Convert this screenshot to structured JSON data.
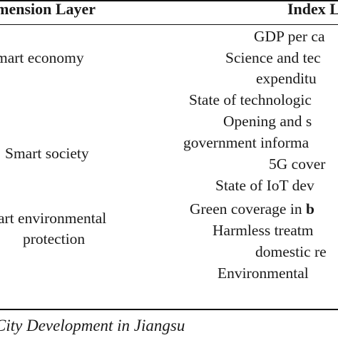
{
  "table": {
    "header": {
      "dimension": "imension Layer",
      "index": "Index La"
    },
    "rows": [
      {
        "dimension": [
          "mart economy"
        ],
        "indices": [
          "GDP per ca",
          "Science and tec",
          "expenditu",
          "State of technologic"
        ]
      },
      {
        "dimension": [
          "Smart society"
        ],
        "indices": [
          "Opening and s",
          "government informa",
          "5G cover",
          "State of IoT dev"
        ]
      },
      {
        "dimension": [
          "art environmental",
          "protection"
        ],
        "indices": [
          "Green coverage in",
          "Harmless treatm",
          "domestic re",
          "Environmental"
        ]
      }
    ],
    "green_coverage_tail": "b"
  },
  "caption": "City Development in Jiangsu"
}
